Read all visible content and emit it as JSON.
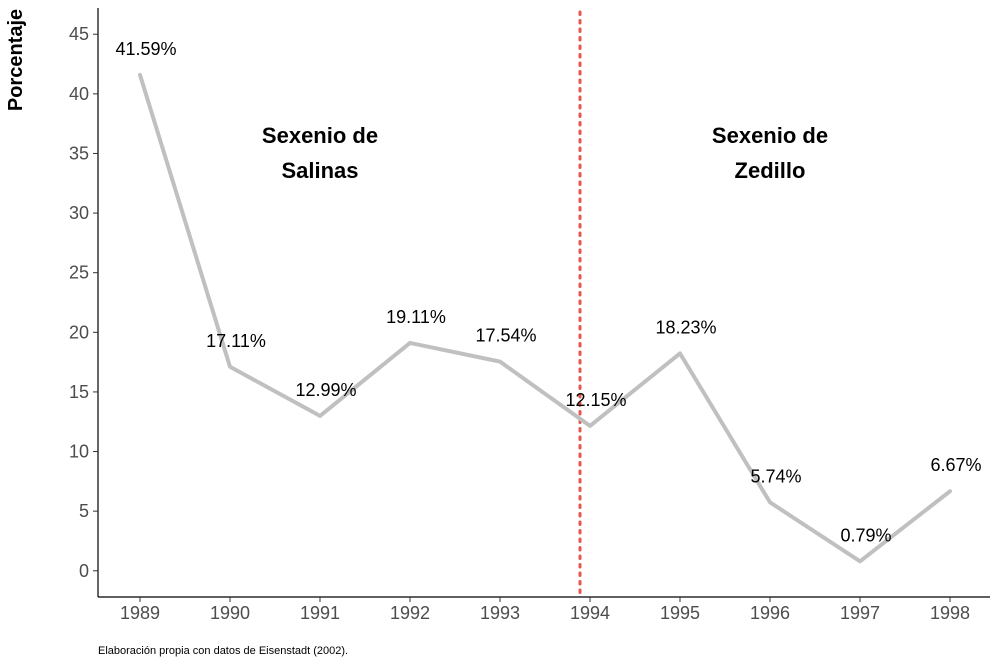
{
  "chart_data": {
    "type": "line",
    "title": "",
    "xlabel": "",
    "ylabel": "Porcentaje",
    "x": [
      "1989",
      "1990",
      "1991",
      "1992",
      "1993",
      "1994",
      "1995",
      "1996",
      "1997",
      "1998"
    ],
    "values": [
      41.59,
      17.11,
      12.99,
      19.11,
      17.54,
      12.15,
      18.23,
      5.74,
      0.79,
      6.67
    ],
    "data_labels": [
      "41.59%",
      "17.11%",
      "12.99%",
      "19.11%",
      "17.54%",
      "12.15%",
      "18.23%",
      "5.74%",
      "0.79%",
      "6.67%"
    ],
    "ylim": [
      -2.2,
      47.2
    ],
    "yticks": [
      0,
      5,
      10,
      15,
      20,
      25,
      30,
      35,
      40,
      45
    ],
    "grid": false,
    "reference_line": {
      "x": "1994",
      "style": "dotted",
      "color": "#e8554a"
    },
    "annotations": [
      {
        "x": "1991",
        "lines": [
          "Sexenio de",
          "Salinas"
        ]
      },
      {
        "x": "1996",
        "lines": [
          "Sexenio de",
          "Zedillo"
        ]
      }
    ],
    "series_color": "#c0c0c0"
  },
  "caption": "Elaboración propia con datos de Eisenstadt (2002)."
}
